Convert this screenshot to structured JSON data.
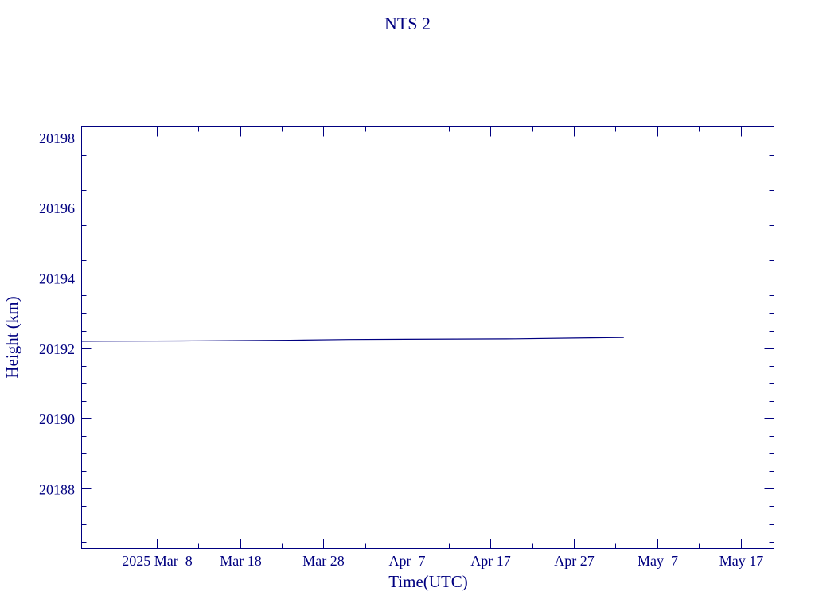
{
  "chart_data": {
    "type": "line",
    "title": "NTS 2",
    "xlabel": "Time(UTC)",
    "ylabel": "Height (km)",
    "x_ticks": [
      {
        "date": "2025-03-08",
        "label": "2025 Mar  8"
      },
      {
        "date": "2025-03-18",
        "label": "Mar 18"
      },
      {
        "date": "2025-03-28",
        "label": "Mar 28"
      },
      {
        "date": "2025-04-07",
        "label": "Apr  7"
      },
      {
        "date": "2025-04-17",
        "label": "Apr 17"
      },
      {
        "date": "2025-04-27",
        "label": "Apr 27"
      },
      {
        "date": "2025-05-07",
        "label": "May  7"
      },
      {
        "date": "2025-05-17",
        "label": "May 17"
      }
    ],
    "xlim": [
      "2025-02-27T00:00",
      "2025-05-21T00:00"
    ],
    "ylim": [
      20186.3,
      20198.3
    ],
    "y_ticks": [
      20188,
      20190,
      20192,
      20194,
      20196,
      20198
    ],
    "series": [
      {
        "x": [
          "2025-02-27",
          "2025-03-11",
          "2025-03-24",
          "2025-03-31",
          "2025-04-20",
          "2025-04-27",
          "2025-05-03"
        ],
        "y": [
          20192.2,
          20192.21,
          20192.23,
          20192.25,
          20192.27,
          20192.29,
          20192.31
        ],
        "color": "#000080"
      }
    ],
    "grid": false,
    "color": "#000080"
  }
}
